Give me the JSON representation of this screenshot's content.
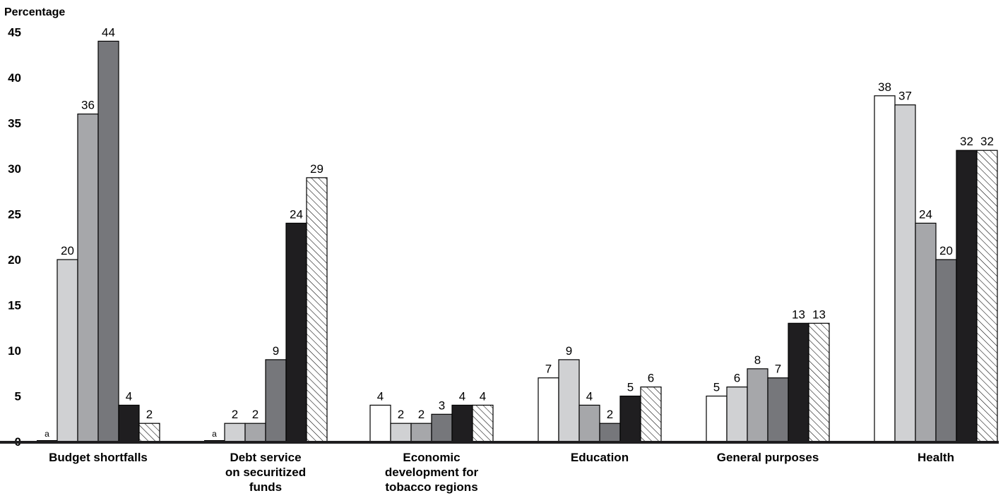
{
  "chart_data": {
    "type": "bar",
    "ylabel": "Percentage",
    "ylim": [
      0,
      45
    ],
    "yticks": [
      "0",
      "5",
      "10",
      "15",
      "20",
      "25",
      "30",
      "35",
      "40",
      "45"
    ],
    "grid": false,
    "categories": [
      [
        "Budget shortfalls"
      ],
      [
        "Debt service",
        "on securitized",
        "funds"
      ],
      [
        "Economic",
        "development for",
        "tobacco regions"
      ],
      [
        "Education"
      ],
      [
        "General purposes"
      ],
      [
        "Health"
      ]
    ],
    "series": [
      {
        "fill": "#ffffff",
        "pattern": "none",
        "values": [
          0,
          0,
          4,
          7,
          5,
          38
        ],
        "labels": [
          "a",
          "a",
          "4",
          "7",
          "5",
          "38"
        ]
      },
      {
        "fill": "#d0d1d3",
        "pattern": "none",
        "values": [
          20,
          2,
          2,
          9,
          6,
          37
        ],
        "labels": [
          "20",
          "2",
          "2",
          "9",
          "6",
          "37"
        ]
      },
      {
        "fill": "#a6a7aa",
        "pattern": "none",
        "values": [
          36,
          2,
          2,
          4,
          8,
          24
        ],
        "labels": [
          "36",
          "2",
          "2",
          "4",
          "8",
          "24"
        ]
      },
      {
        "fill": "#76777b",
        "pattern": "none",
        "values": [
          44,
          9,
          3,
          2,
          7,
          20
        ],
        "labels": [
          "44",
          "9",
          "3",
          "2",
          "7",
          "20"
        ]
      },
      {
        "fill": "#1f1e20",
        "pattern": "none",
        "values": [
          4,
          24,
          4,
          5,
          13,
          32
        ],
        "labels": [
          "4",
          "24",
          "4",
          "5",
          "13",
          "32"
        ]
      },
      {
        "fill": "#ffffff",
        "pattern": "hatch",
        "values": [
          2,
          29,
          4,
          6,
          13,
          32
        ],
        "labels": [
          "2",
          "29",
          "4",
          "6",
          "13",
          "32"
        ]
      }
    ]
  }
}
